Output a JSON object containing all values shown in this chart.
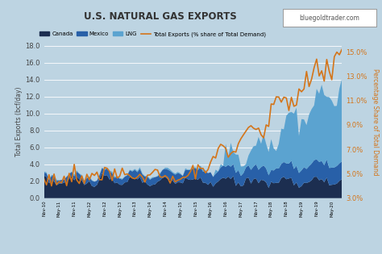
{
  "title": "U.S. NATURAL GAS EXPORTS",
  "watermark": "bluegoldtrader.com",
  "ylabel_left": "Total Exports (bcf/day)",
  "ylabel_right": "Percentage Share of Total Demand",
  "background_color": "#bdd4e2",
  "plot_bg_color": "#bdd4e2",
  "ylim_left": [
    0.0,
    18.0
  ],
  "ylim_right": [
    0.03,
    0.155
  ],
  "yticks_left": [
    0.0,
    2.0,
    4.0,
    6.0,
    8.0,
    10.0,
    12.0,
    14.0,
    16.0,
    18.0
  ],
  "yticks_right_vals": [
    0.03,
    0.05,
    0.07,
    0.09,
    0.11,
    0.13,
    0.15
  ],
  "yticks_right_labels": [
    "3.0%",
    "5.0%",
    "7.0%",
    "9.0%",
    "11.0%",
    "13.0%",
    "15.0%"
  ],
  "color_canada": "#1c2e50",
  "color_mexico": "#2860a8",
  "color_lng": "#5ba3d0",
  "color_line": "#d4751a",
  "legend_labels": [
    "Canada",
    "Mexico",
    "LNG",
    "Total Exports (% share of Total Demand)"
  ]
}
